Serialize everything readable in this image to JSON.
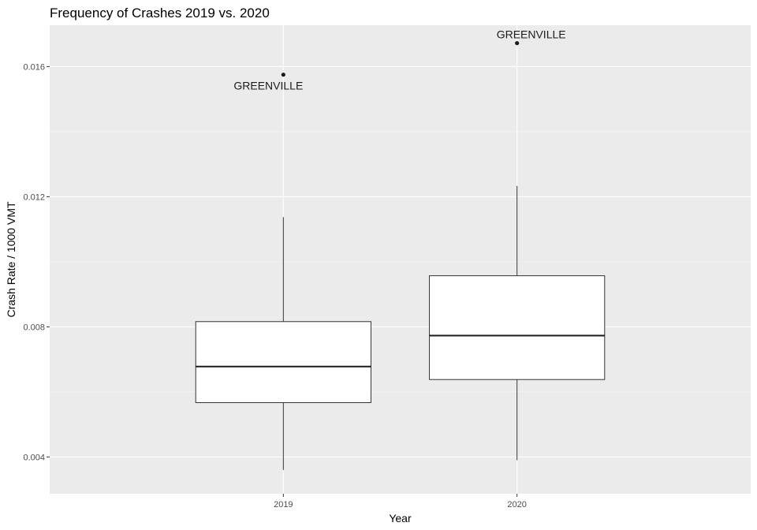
{
  "chart_data": {
    "type": "box",
    "title": "Frequency of Crashes 2019 vs. 2020",
    "xlabel": "Year",
    "ylabel": "Crash Rate / 1000 VMT",
    "categories": [
      "2019",
      "2020"
    ],
    "y_ticks": [
      "0.004",
      "0.008",
      "0.012",
      "0.016"
    ],
    "ylim": [
      0.00287,
      0.01727
    ],
    "grid": true,
    "boxes": [
      {
        "category": "2019",
        "whisker_low": 0.0036,
        "q1": 0.00567,
        "median": 0.00678,
        "q3": 0.00816,
        "whisker_high": 0.01137,
        "outliers": [
          {
            "value": 0.01575,
            "label": "GREENVILLE"
          }
        ]
      },
      {
        "category": "2020",
        "whisker_low": 0.0039,
        "q1": 0.00638,
        "median": 0.00773,
        "q3": 0.00957,
        "whisker_high": 0.01233,
        "outliers": [
          {
            "value": 0.01672,
            "label": "GREENVILLE"
          }
        ]
      }
    ],
    "colors": {
      "panel": "#ebebeb",
      "grid": "#ffffff",
      "box_fill": "#ffffff",
      "box_line": "#333333"
    }
  }
}
